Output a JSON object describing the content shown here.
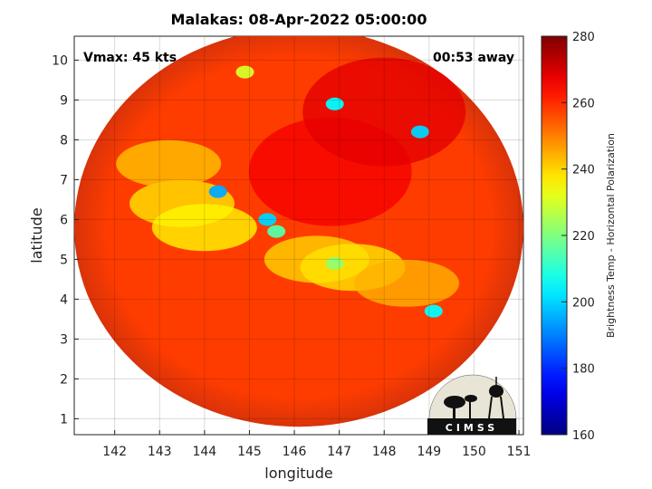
{
  "title": "Malakas: 08-Apr-2022 05:00:00",
  "annotations": {
    "vmax": "Vmax: 45 kts",
    "away": "00:53 away"
  },
  "logo_text": "CIMSS",
  "chart_data": {
    "type": "heatmap",
    "xlabel": "longitude",
    "ylabel": "latitude",
    "xlim": [
      141.1,
      151.1
    ],
    "ylim": [
      0.6,
      10.6
    ],
    "x_ticks": [
      "142",
      "143",
      "144",
      "145",
      "146",
      "147",
      "148",
      "149",
      "150",
      "151"
    ],
    "y_ticks": [
      "1",
      "2",
      "3",
      "4",
      "5",
      "6",
      "7",
      "8",
      "9",
      "10"
    ],
    "grid": true,
    "colorbar": {
      "label": "Brightness Temp - Horizontal Polarization",
      "range": [
        160,
        280
      ],
      "ticks": [
        "160",
        "180",
        "200",
        "220",
        "240",
        "260",
        "280"
      ],
      "colormap": "jet"
    },
    "swath": {
      "center_lon": 146.1,
      "center_lat": 5.8,
      "radius_deg": 5.0
    },
    "features": [
      {
        "label": "background",
        "lon": 146.1,
        "lat": 5.8,
        "value": 258
      },
      {
        "label": "cold-core",
        "lon": 146.8,
        "lat": 7.2,
        "value": 266
      },
      {
        "label": "cold-north",
        "lon": 148.0,
        "lat": 8.7,
        "value": 268
      },
      {
        "label": "west-band",
        "lon": 143.5,
        "lat": 6.4,
        "value": 238
      },
      {
        "label": "west-band-2",
        "lon": 144.0,
        "lat": 5.8,
        "value": 236
      },
      {
        "label": "southwest-band",
        "lon": 143.2,
        "lat": 7.4,
        "value": 242
      },
      {
        "label": "central-band",
        "lon": 146.5,
        "lat": 5.0,
        "value": 240
      },
      {
        "label": "central-band-2",
        "lon": 147.3,
        "lat": 4.8,
        "value": 238
      },
      {
        "label": "east-band",
        "lon": 148.5,
        "lat": 4.4,
        "value": 244
      },
      {
        "label": "spot-144.3-6.7",
        "lon": 144.3,
        "lat": 6.7,
        "value": 195
      },
      {
        "label": "spot-145.4-6.0",
        "lon": 145.4,
        "lat": 6.0,
        "value": 200
      },
      {
        "label": "spot-145.5-5.7",
        "lon": 145.6,
        "lat": 5.7,
        "value": 215
      },
      {
        "label": "spot-146.9-8.9",
        "lon": 146.9,
        "lat": 8.9,
        "value": 205
      },
      {
        "label": "spot-148.8-8.2",
        "lon": 148.8,
        "lat": 8.2,
        "value": 200
      },
      {
        "label": "spot-149.1-3.7",
        "lon": 149.1,
        "lat": 3.7,
        "value": 205
      },
      {
        "label": "spot-146.9-4.9",
        "lon": 146.9,
        "lat": 4.9,
        "value": 222
      },
      {
        "label": "spot-144.9-9.7",
        "lon": 144.9,
        "lat": 9.7,
        "value": 230
      }
    ]
  }
}
